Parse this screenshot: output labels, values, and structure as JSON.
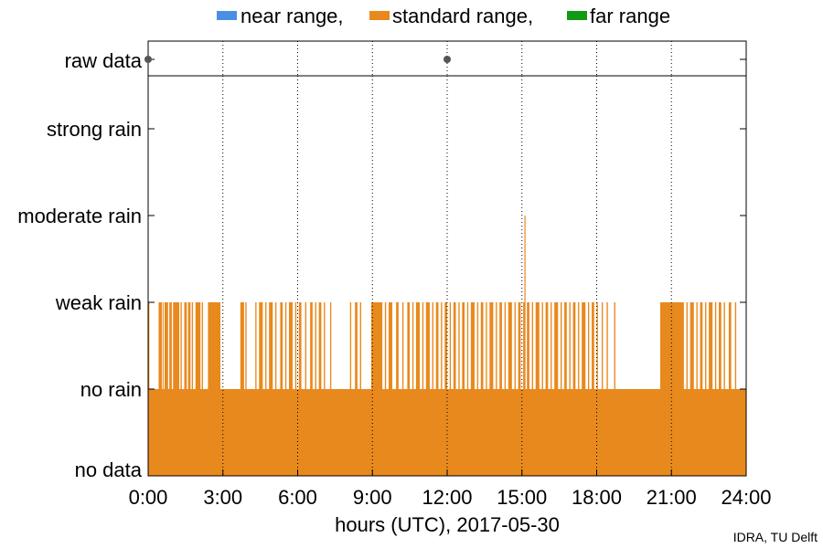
{
  "legend": [
    {
      "label": "near range,",
      "color": "#4a90e2"
    },
    {
      "label": "standard range,",
      "color": "#e8891e"
    },
    {
      "label": "far range",
      "color": "#139a13"
    }
  ],
  "credit": "IDRA, TU Delft",
  "chart_data": {
    "type": "bar",
    "xlabel": "hours (UTC), 2017-05-30",
    "ylabel": "",
    "x_ticks": [
      "0:00",
      "3:00",
      "6:00",
      "9:00",
      "12:00",
      "15:00",
      "18:00",
      "21:00",
      "24:00"
    ],
    "xlim": [
      0,
      24
    ],
    "y_levels": [
      "no data",
      "no rain",
      "weak rain",
      "moderate rain",
      "strong rain"
    ],
    "raw_data_label": "raw data",
    "raw_data_points_hours": [
      0.0,
      12.0
    ],
    "grid": "vertical dotted at every 3 hours",
    "legend_position": "top",
    "series": [
      {
        "name": "standard range",
        "color": "#e8891e",
        "baseline_level": "no rain",
        "weak_rain_intervals_hours": [
          [
            0.0,
            0.05
          ],
          [
            0.42,
            0.55
          ],
          [
            0.58,
            0.62
          ],
          [
            0.66,
            0.8
          ],
          [
            0.85,
            0.95
          ],
          [
            1.0,
            1.25
          ],
          [
            1.3,
            1.35
          ],
          [
            1.45,
            1.55
          ],
          [
            1.6,
            1.7
          ],
          [
            1.75,
            1.8
          ],
          [
            1.9,
            2.1
          ],
          [
            2.15,
            2.2
          ],
          [
            2.4,
            2.9
          ],
          [
            3.7,
            3.85
          ],
          [
            3.9,
            3.95
          ],
          [
            4.3,
            4.35
          ],
          [
            4.45,
            4.6
          ],
          [
            4.7,
            4.75
          ],
          [
            4.85,
            5.0
          ],
          [
            5.1,
            5.15
          ],
          [
            5.3,
            5.4
          ],
          [
            5.5,
            5.55
          ],
          [
            5.65,
            5.8
          ],
          [
            5.9,
            5.95
          ],
          [
            6.05,
            6.15
          ],
          [
            6.3,
            6.35
          ],
          [
            6.5,
            6.6
          ],
          [
            6.7,
            6.75
          ],
          [
            6.85,
            6.95
          ],
          [
            7.05,
            7.1
          ],
          [
            7.3,
            7.35
          ],
          [
            8.1,
            8.15
          ],
          [
            8.3,
            8.4
          ],
          [
            8.5,
            8.55
          ],
          [
            8.95,
            9.4
          ],
          [
            9.5,
            9.55
          ],
          [
            9.65,
            9.8
          ],
          [
            9.95,
            10.05
          ],
          [
            10.2,
            10.25
          ],
          [
            10.4,
            10.5
          ],
          [
            10.6,
            10.65
          ],
          [
            10.75,
            10.9
          ],
          [
            11.0,
            11.05
          ],
          [
            11.15,
            11.3
          ],
          [
            11.4,
            11.45
          ],
          [
            11.55,
            11.65
          ],
          [
            11.75,
            11.8
          ],
          [
            11.9,
            12.0
          ],
          [
            12.1,
            12.15
          ],
          [
            12.25,
            12.35
          ],
          [
            12.45,
            12.5
          ],
          [
            12.6,
            12.7
          ],
          [
            12.8,
            12.85
          ],
          [
            12.95,
            13.1
          ],
          [
            13.2,
            13.25
          ],
          [
            13.35,
            13.45
          ],
          [
            13.55,
            13.6
          ],
          [
            13.7,
            13.85
          ],
          [
            13.95,
            14.0
          ],
          [
            14.1,
            14.2
          ],
          [
            14.3,
            14.35
          ],
          [
            14.45,
            14.6
          ],
          [
            14.7,
            14.75
          ],
          [
            14.85,
            14.95
          ],
          [
            15.05,
            15.1
          ],
          [
            15.2,
            15.3
          ],
          [
            15.4,
            15.45
          ],
          [
            15.55,
            15.7
          ],
          [
            15.8,
            15.85
          ],
          [
            15.95,
            16.05
          ],
          [
            16.15,
            16.2
          ],
          [
            16.3,
            16.45
          ],
          [
            16.55,
            16.6
          ],
          [
            16.7,
            16.8
          ],
          [
            16.9,
            16.95
          ],
          [
            17.05,
            17.15
          ],
          [
            17.25,
            17.3
          ],
          [
            17.4,
            17.55
          ],
          [
            17.65,
            17.7
          ],
          [
            17.8,
            17.9
          ],
          [
            18.0,
            18.05
          ],
          [
            18.2,
            18.25
          ],
          [
            18.4,
            18.45
          ],
          [
            18.7,
            18.75
          ],
          [
            20.55,
            21.5
          ],
          [
            21.6,
            21.65
          ],
          [
            21.75,
            21.9
          ],
          [
            22.0,
            22.05
          ],
          [
            22.15,
            22.25
          ],
          [
            22.35,
            22.4
          ],
          [
            22.5,
            22.65
          ],
          [
            22.75,
            22.8
          ],
          [
            22.9,
            23.0
          ],
          [
            23.1,
            23.15
          ],
          [
            23.3,
            23.4
          ],
          [
            23.55,
            23.6
          ]
        ],
        "moderate_rain_hours": [
          15.1
        ]
      }
    ]
  }
}
